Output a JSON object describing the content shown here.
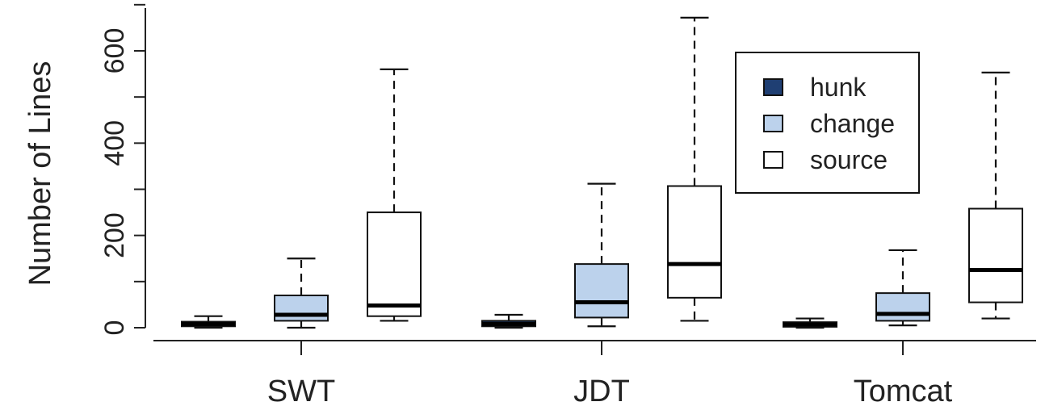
{
  "chart_data": {
    "type": "boxplot",
    "ylabel": "Number of Lines",
    "ylim": [
      0,
      700
    ],
    "yticks": [
      0,
      200,
      400,
      600
    ],
    "categories": [
      "SWT",
      "JDT",
      "Tomcat"
    ],
    "series": [
      {
        "name": "hunk",
        "color": "#1f3f73",
        "boxes": [
          {
            "min": 0,
            "q1": 3,
            "median": 8,
            "q3": 13,
            "max": 25
          },
          {
            "min": 0,
            "q1": 3,
            "median": 8,
            "q3": 15,
            "max": 28
          },
          {
            "min": 0,
            "q1": 2,
            "median": 7,
            "q3": 12,
            "max": 20
          }
        ]
      },
      {
        "name": "change",
        "color": "#bcd2ec",
        "boxes": [
          {
            "min": 0,
            "q1": 15,
            "median": 28,
            "q3": 70,
            "max": 150
          },
          {
            "min": 3,
            "q1": 22,
            "median": 55,
            "q3": 138,
            "max": 312
          },
          {
            "min": 5,
            "q1": 15,
            "median": 30,
            "q3": 75,
            "max": 168
          }
        ]
      },
      {
        "name": "source",
        "color": "#ffffff",
        "boxes": [
          {
            "min": 15,
            "q1": 25,
            "median": 48,
            "q3": 250,
            "max": 560
          },
          {
            "min": 15,
            "q1": 65,
            "median": 138,
            "q3": 307,
            "max": 672
          },
          {
            "min": 20,
            "q1": 55,
            "median": 125,
            "q3": 258,
            "max": 553
          }
        ]
      }
    ],
    "legend": {
      "position": "top-right",
      "entries": [
        "hunk",
        "change",
        "source"
      ]
    },
    "grid": false
  }
}
